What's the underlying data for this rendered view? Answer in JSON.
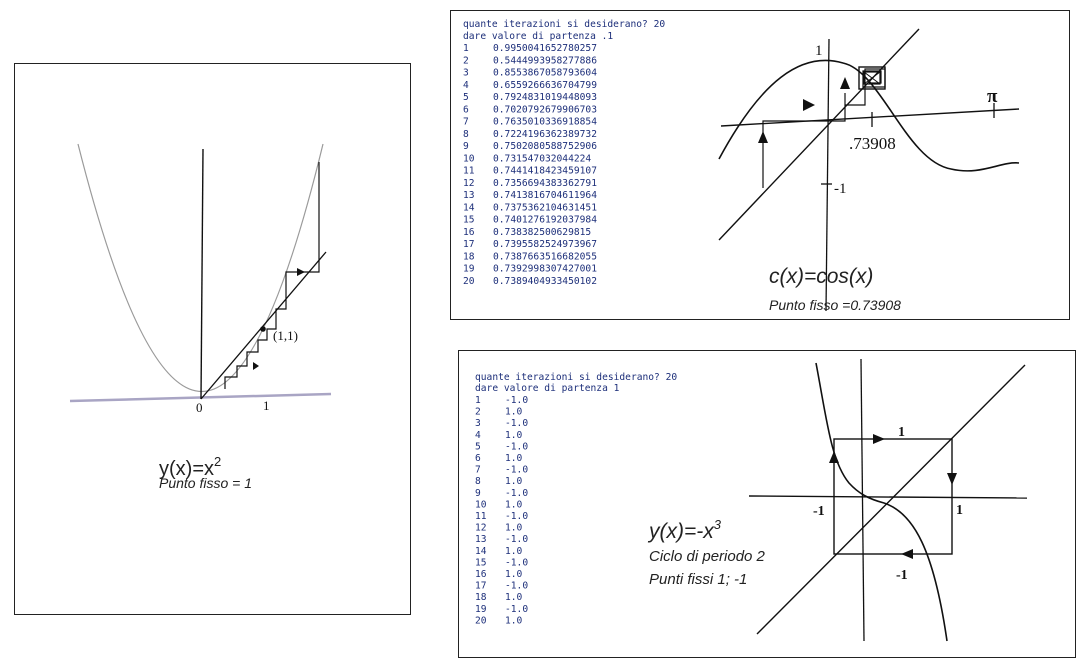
{
  "left_panel": {
    "formula_main": "y(x)=x",
    "formula_exp": "2",
    "subtitle": "Punto fisso = 1",
    "point_label": "(1,1)",
    "tick_zero": "0",
    "tick_one": "1"
  },
  "cos_panel": {
    "prompt": "quante iterazioni si desiderano? 20",
    "start": "dare valore di partenza .1",
    "iterations": [
      {
        "n": "1",
        "v": "0.9950041652780257"
      },
      {
        "n": "2",
        "v": "0.5444993958277886"
      },
      {
        "n": "3",
        "v": "0.8553867058793604"
      },
      {
        "n": "4",
        "v": "0.6559266636704799"
      },
      {
        "n": "5",
        "v": "0.7924831019448093"
      },
      {
        "n": "6",
        "v": "0.7020792679906703"
      },
      {
        "n": "7",
        "v": "0.7635010336918854"
      },
      {
        "n": "8",
        "v": "0.7224196362389732"
      },
      {
        "n": "9",
        "v": "0.7502080588752906"
      },
      {
        "n": "10",
        "v": "0.731547032044224"
      },
      {
        "n": "11",
        "v": "0.7441418423459107"
      },
      {
        "n": "12",
        "v": "0.7356694383362791"
      },
      {
        "n": "13",
        "v": "0.7413816704611964"
      },
      {
        "n": "14",
        "v": "0.7375362104631451"
      },
      {
        "n": "15",
        "v": "0.7401276192037984"
      },
      {
        "n": "16",
        "v": "0.738382500629815"
      },
      {
        "n": "17",
        "v": "0.7395582524973967"
      },
      {
        "n": "18",
        "v": "0.7387663516682055"
      },
      {
        "n": "19",
        "v": "0.7392998307427001"
      },
      {
        "n": "20",
        "v": "0.7389404933450102"
      }
    ],
    "formula": "c(x)=cos(x)",
    "subtitle": "Punto fisso =0.73908",
    "label_one": "1",
    "label_pi": "π",
    "label_fixed": ".73908",
    "label_minus_one": "-1"
  },
  "cube_panel": {
    "prompt": "quante iterazioni si desiderano? 20",
    "start": "dare valore di partenza 1",
    "iterations": [
      {
        "n": "1",
        "v": "-1.0"
      },
      {
        "n": "2",
        "v": "1.0"
      },
      {
        "n": "3",
        "v": "-1.0"
      },
      {
        "n": "4",
        "v": "1.0"
      },
      {
        "n": "5",
        "v": "-1.0"
      },
      {
        "n": "6",
        "v": "1.0"
      },
      {
        "n": "7",
        "v": "-1.0"
      },
      {
        "n": "8",
        "v": "1.0"
      },
      {
        "n": "9",
        "v": "-1.0"
      },
      {
        "n": "10",
        "v": "1.0"
      },
      {
        "n": "11",
        "v": "-1.0"
      },
      {
        "n": "12",
        "v": "1.0"
      },
      {
        "n": "13",
        "v": "-1.0"
      },
      {
        "n": "14",
        "v": "1.0"
      },
      {
        "n": "15",
        "v": "-1.0"
      },
      {
        "n": "16",
        "v": "1.0"
      },
      {
        "n": "17",
        "v": "-1.0"
      },
      {
        "n": "18",
        "v": "1.0"
      },
      {
        "n": "19",
        "v": "-1.0"
      },
      {
        "n": "20",
        "v": "1.0"
      }
    ],
    "formula_main": "y(x)=-x",
    "formula_exp": "3",
    "line2": "Ciclo di periodo 2",
    "line3": "Punti fissi 1; -1",
    "label_top": "1",
    "label_left": "-1",
    "label_right": "1",
    "label_bottom": "-1"
  },
  "colors": {
    "console_text": "#1d2f7a",
    "ink": "#111111",
    "parabola_gray": "#9a9a9a",
    "axis_lavender": "#a9a5c4",
    "caption_green": "#2e4a2a"
  }
}
